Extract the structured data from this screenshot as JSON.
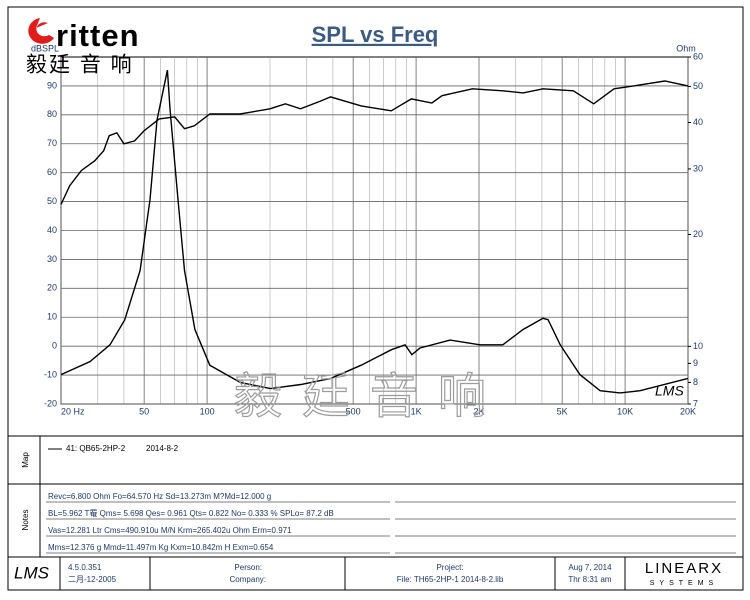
{
  "header": {
    "logo": "ritten",
    "logo_cn": "毅廷 音 响",
    "watermark": "毅廷音响"
  },
  "chart_data": {
    "type": "line",
    "title": "SPL vs Freq",
    "y_label": "dBSPL",
    "y2_label": "Ohm",
    "xscale": "log",
    "y2scale": "log",
    "grid": true,
    "xlim": [
      20,
      20000
    ],
    "ylim": [
      -20,
      100
    ],
    "y2lim": [
      7,
      60
    ],
    "xticks": [
      {
        "value": 20,
        "label": "20 Hz"
      },
      50,
      100,
      500,
      {
        "value": 1000,
        "label": "1K"
      },
      {
        "value": 2000,
        "label": "2K"
      },
      {
        "value": 5000,
        "label": "5K"
      },
      {
        "value": 10000,
        "label": "10K"
      },
      {
        "value": 20000,
        "label": "20K"
      }
    ],
    "xgrid": [
      30,
      40,
      60,
      70,
      80,
      90,
      200,
      300,
      400,
      600,
      700,
      800,
      900,
      3000,
      4000,
      6000,
      7000,
      8000,
      9000
    ],
    "yticks": [
      -20,
      -10,
      0,
      10,
      20,
      30,
      40,
      50,
      60,
      70,
      80,
      90
    ],
    "y2ticks": [
      7,
      8,
      9,
      10,
      20,
      30,
      40,
      50,
      60
    ],
    "annotations": [
      "LMS"
    ],
    "series": [
      {
        "color": "#000000",
        "x": [
          20,
          22,
          25,
          29,
          32,
          34,
          37,
          40,
          45,
          50,
          59,
          70,
          78,
          87,
          103,
          144,
          200,
          237,
          280,
          350,
          390,
          546,
          760,
          950,
          1190,
          1330,
          1860,
          2600,
          3250,
          4050,
          5650,
          7080,
          8850,
          11000,
          15500,
          20000
        ],
        "values": [
          49,
          55.5,
          60.7,
          64.1,
          67.6,
          72.8,
          73.8,
          70,
          71,
          74.5,
          78.6,
          79.3,
          75.2,
          76.2,
          80.3,
          80.3,
          82.1,
          83.8,
          82.1,
          84.8,
          86.2,
          83.1,
          81.4,
          85.5,
          84.1,
          86.6,
          89,
          88.3,
          87.6,
          89,
          88.3,
          83.8,
          89,
          90,
          91.7,
          90
        ]
      },
      {
        "color": "#000000",
        "axis": "y2",
        "x": [
          20,
          27.5,
          34.3,
          40.4,
          47.8,
          53.3,
          57.6,
          64.6,
          66.5,
          72.6,
          78,
          87.4,
          103,
          144,
          201,
          281,
          391,
          546,
          762,
          886,
          955,
          1044,
          1454,
          2020,
          2600,
          3250,
          4050,
          4280,
          4890,
          6080,
          7590,
          9460,
          11800,
          20000
        ],
        "values": [
          8.4,
          9.1,
          10.1,
          11.8,
          16,
          24.8,
          40.6,
          55.3,
          43.2,
          24.8,
          16,
          11.1,
          8.9,
          8.0,
          7.7,
          7.9,
          8.2,
          8.9,
          9.8,
          10.1,
          9.5,
          9.9,
          10.4,
          10.1,
          10.1,
          11.1,
          11.9,
          11.8,
          10.1,
          8.4,
          7.6,
          7.5,
          7.6,
          8.2
        ]
      }
    ]
  },
  "map": {
    "label": "Map",
    "entry": "41: QB65-2HP-2",
    "date": "2014-8-2"
  },
  "notes": {
    "label": "Notes",
    "lines": [
      "Revc=6.800 Ohm  Fo=64.570 Hz  Sd=13.273m M?Md=12.000 g",
      "BL=5.962 T罨  Qms= 5.698  Qes= 0.961  Qts= 0.822  No= 0.333 %  SPLo= 87.2 dB",
      "Vas=12.281 Ltr  Cms=490.910u M/N  Krm=265.402u Ohm  Erm=0.971",
      "Mms=12.376 g  Mmd=11.497m Kg  Kxm=10.842m H  Exm=0.654"
    ]
  },
  "footer": {
    "logo": "LMS",
    "version": "4.5.0.351",
    "build_date": "二月-12-2005",
    "person": "Person:",
    "company": "Company:",
    "project": "Project:",
    "file": "File: TH65-2HP-1   2014-8-2.lib",
    "date": "Aug  7, 2014",
    "time": "Thr  8:31 am",
    "brand": "LINEARX",
    "brand_sub": "SYSTEMS"
  }
}
